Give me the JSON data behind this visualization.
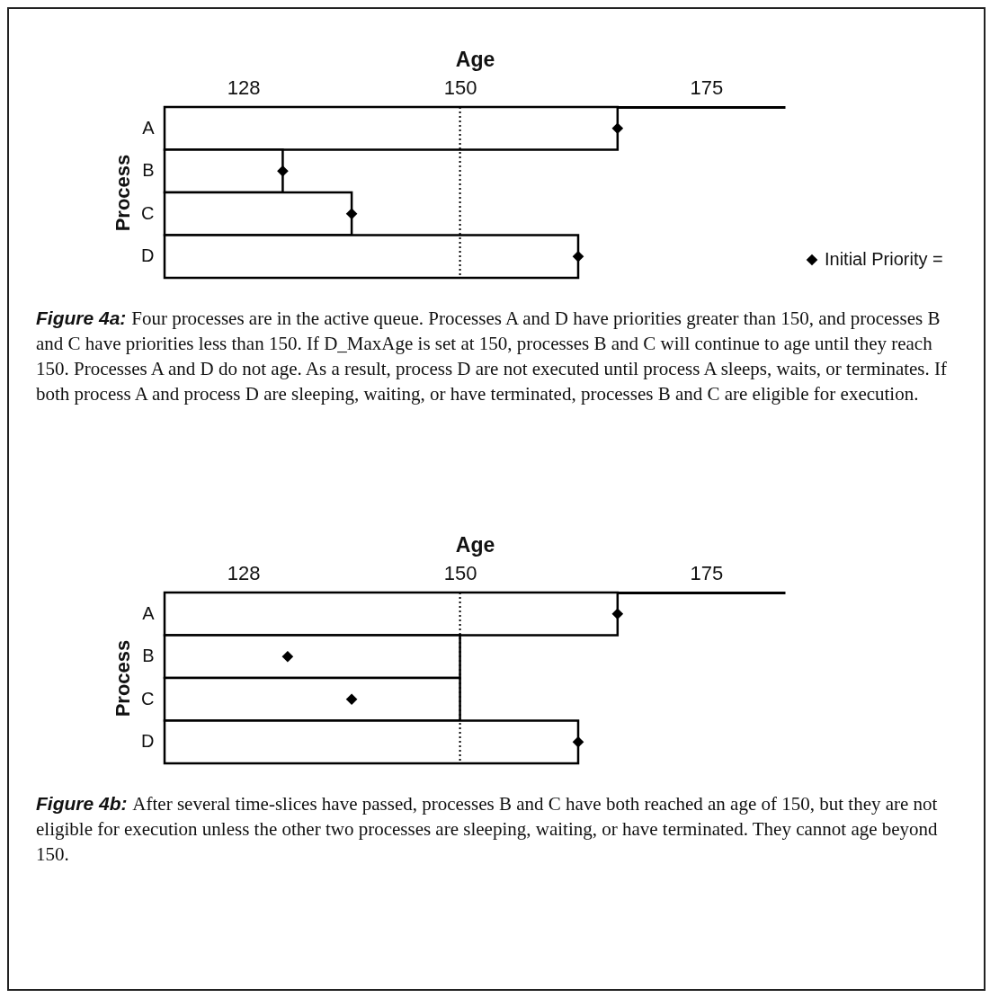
{
  "chart_data": [
    {
      "type": "bar",
      "orientation": "horizontal",
      "xlabel": "Age",
      "ylabel": "Process",
      "categories": [
        "A",
        "B",
        "C",
        "D"
      ],
      "series": [
        {
          "type": "bar",
          "color": "#ffffff",
          "values": [
            166,
            132,
            139,
            162
          ]
        },
        {
          "type": "scatter",
          "name": "Initial Priority =",
          "color": "#000000",
          "values": [
            166,
            132,
            139,
            162
          ]
        }
      ],
      "xlim": [
        120,
        183
      ],
      "xticks": [
        128,
        150,
        175
      ],
      "grid": false,
      "marker": "diamond",
      "legend": "bottom right",
      "ref_lines": [
        {
          "axis": "x",
          "value": 150,
          "line_style": "dotted",
          "color": "#000000"
        }
      ],
      "annotations": [
        "Figure 4a:",
        "Four processes are in the active queue.  Processes A and D have priorities greater than 150, and processes B and C have priorities less than 150.  If D_MaxAge is set at 150, processes B and C will continue to age until they reach 150.  Processes A and D do not age.  As a result, process D are not executed until process A sleeps, waits, or terminates.  If both process A and process D are sleeping, waiting, or have terminated, processes B and C are eligible for execution."
      ]
    },
    {
      "type": "bar",
      "orientation": "horizontal",
      "xlabel": "Age",
      "ylabel": "Process",
      "categories": [
        "A",
        "B",
        "C",
        "D"
      ],
      "series": [
        {
          "type": "bar",
          "color": "#ffffff",
          "values": [
            166,
            150,
            150,
            162
          ]
        },
        {
          "type": "scatter",
          "color": "#000000",
          "values": [
            166,
            132.5,
            139,
            162
          ]
        }
      ],
      "xlim": [
        120,
        183
      ],
      "xticks": [
        128,
        150,
        175
      ],
      "grid": false,
      "marker": "diamond",
      "ref_lines": [
        {
          "axis": "x",
          "value": 150,
          "line_style": "dotted",
          "color": "#000000"
        }
      ],
      "annotations": [
        "Figure 4b:",
        "After several time-slices have passed, processes B and C have both reached an age of 150, but they are not eligible for execution unless the other two processes are sleeping, waiting, or have terminated.  They cannot age beyond 150."
      ]
    }
  ]
}
